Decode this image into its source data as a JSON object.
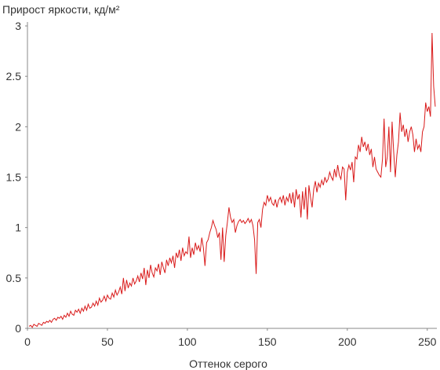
{
  "chart_data": {
    "type": "line",
    "y_label": "Прирост яркости, кд/м²",
    "x_label": "Оттенок серого",
    "xlim": [
      0,
      256
    ],
    "ylim": [
      0,
      3
    ],
    "xticks": [
      0,
      50,
      100,
      150,
      200,
      250
    ],
    "yticks": [
      0,
      0.5,
      1,
      1.5,
      2,
      2.5,
      3
    ],
    "x": [
      1,
      2,
      3,
      4,
      5,
      6,
      7,
      8,
      9,
      10,
      11,
      12,
      13,
      14,
      15,
      16,
      17,
      18,
      19,
      20,
      21,
      22,
      23,
      24,
      25,
      26,
      27,
      28,
      29,
      30,
      31,
      32,
      33,
      34,
      35,
      36,
      37,
      38,
      39,
      40,
      41,
      42,
      43,
      44,
      45,
      46,
      47,
      48,
      49,
      50,
      51,
      52,
      53,
      54,
      55,
      56,
      57,
      58,
      59,
      60,
      61,
      62,
      63,
      64,
      65,
      66,
      67,
      68,
      69,
      70,
      71,
      72,
      73,
      74,
      75,
      76,
      77,
      78,
      79,
      80,
      81,
      82,
      83,
      84,
      85,
      86,
      87,
      88,
      89,
      90,
      91,
      92,
      93,
      94,
      95,
      96,
      97,
      98,
      99,
      100,
      101,
      102,
      103,
      104,
      105,
      106,
      107,
      108,
      109,
      110,
      111,
      112,
      113,
      114,
      115,
      116,
      117,
      118,
      119,
      120,
      121,
      122,
      123,
      124,
      125,
      126,
      127,
      128,
      129,
      130,
      131,
      132,
      133,
      134,
      135,
      136,
      137,
      138,
      139,
      140,
      141,
      142,
      143,
      144,
      145,
      146,
      147,
      148,
      149,
      150,
      151,
      152,
      153,
      154,
      155,
      156,
      157,
      158,
      159,
      160,
      161,
      162,
      163,
      164,
      165,
      166,
      167,
      168,
      169,
      170,
      171,
      172,
      173,
      174,
      175,
      176,
      177,
      178,
      179,
      180,
      181,
      182,
      183,
      184,
      185,
      186,
      187,
      188,
      189,
      190,
      191,
      192,
      193,
      194,
      195,
      196,
      197,
      198,
      199,
      200,
      201,
      202,
      203,
      204,
      205,
      206,
      207,
      208,
      209,
      210,
      211,
      212,
      213,
      214,
      215,
      216,
      217,
      218,
      219,
      220,
      221,
      222,
      223,
      224,
      225,
      226,
      227,
      228,
      229,
      230,
      231,
      232,
      233,
      234,
      235,
      236,
      237,
      238,
      239,
      240,
      241,
      242,
      243,
      244,
      245,
      246,
      247,
      248,
      249,
      250,
      251,
      252,
      253,
      254,
      255
    ],
    "series": [
      {
        "color": "#d91a1a",
        "values": [
          0.02,
          0.03,
          0.01,
          0.04,
          0.03,
          0.02,
          0.05,
          0.04,
          0.03,
          0.06,
          0.05,
          0.07,
          0.06,
          0.08,
          0.06,
          0.09,
          0.1,
          0.08,
          0.11,
          0.1,
          0.12,
          0.09,
          0.13,
          0.11,
          0.15,
          0.12,
          0.17,
          0.14,
          0.13,
          0.18,
          0.16,
          0.19,
          0.15,
          0.2,
          0.17,
          0.22,
          0.18,
          0.24,
          0.2,
          0.21,
          0.25,
          0.22,
          0.27,
          0.23,
          0.3,
          0.26,
          0.28,
          0.32,
          0.27,
          0.33,
          0.3,
          0.29,
          0.35,
          0.31,
          0.38,
          0.33,
          0.36,
          0.41,
          0.34,
          0.5,
          0.37,
          0.48,
          0.4,
          0.45,
          0.42,
          0.5,
          0.44,
          0.47,
          0.52,
          0.46,
          0.55,
          0.49,
          0.6,
          0.43,
          0.58,
          0.5,
          0.63,
          0.55,
          0.51,
          0.6,
          0.57,
          0.64,
          0.53,
          0.66,
          0.6,
          0.55,
          0.68,
          0.62,
          0.7,
          0.65,
          0.72,
          0.6,
          0.75,
          0.7,
          0.78,
          0.67,
          0.8,
          0.72,
          0.76,
          0.74,
          0.91,
          0.7,
          0.8,
          0.73,
          0.85,
          0.78,
          0.82,
          0.76,
          0.9,
          0.8,
          0.62,
          0.85,
          0.88,
          0.95,
          1.0,
          1.07,
          1.02,
          0.98,
          0.9,
          0.95,
          0.68,
          1.0,
          0.66,
          0.92,
          1.05,
          1.2,
          1.1,
          1.05,
          1.08,
          0.95,
          1.02,
          1.06,
          1.08,
          1.05,
          1.07,
          1.04,
          1.06,
          1.09,
          1.05,
          1.08,
          1.02,
          0.88,
          0.54,
          1.05,
          1.08,
          1.0,
          1.18,
          1.25,
          1.22,
          1.32,
          1.26,
          1.3,
          1.24,
          1.22,
          1.28,
          1.2,
          1.27,
          1.3,
          1.25,
          1.32,
          1.22,
          1.3,
          1.26,
          1.34,
          1.24,
          1.35,
          1.2,
          1.38,
          1.28,
          1.33,
          1.1,
          1.36,
          1.18,
          1.4,
          1.08,
          1.42,
          1.3,
          1.2,
          1.38,
          1.46,
          1.35,
          1.44,
          1.4,
          1.47,
          1.42,
          1.5,
          1.45,
          1.48,
          1.55,
          1.5,
          1.47,
          1.58,
          1.5,
          1.62,
          1.52,
          1.48,
          1.6,
          1.58,
          1.27,
          1.55,
          1.62,
          1.57,
          1.65,
          1.45,
          1.7,
          1.68,
          1.82,
          1.75,
          1.9,
          1.8,
          1.85,
          1.76,
          1.83,
          1.72,
          1.78,
          1.6,
          1.7,
          1.58,
          1.55,
          1.52,
          1.5,
          1.68,
          2.08,
          1.6,
          1.7,
          2.0,
          1.55,
          2.05,
          1.75,
          1.5,
          1.72,
          1.85,
          2.14,
          1.95,
          2.02,
          1.9,
          1.98,
          1.85,
          1.95,
          2.0,
          1.92,
          1.75,
          1.88,
          1.78,
          1.82,
          1.75,
          1.95,
          2.0,
          2.24,
          2.15,
          2.2,
          2.1,
          2.93,
          2.4,
          2.2
        ]
      }
    ]
  }
}
